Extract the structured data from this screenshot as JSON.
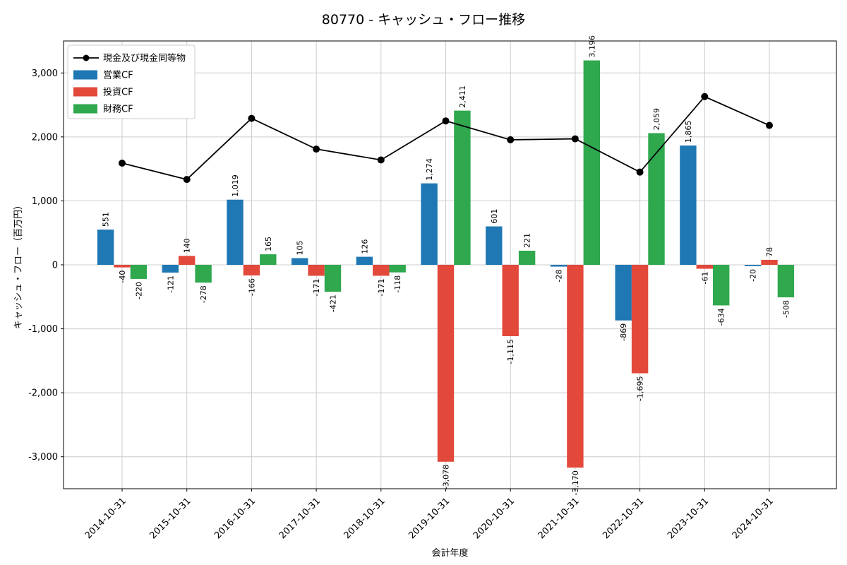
{
  "title": "80770 - キャッシュ・フロー推移",
  "chart_data": {
    "type": "bar",
    "subtype": "grouped-bars-with-line",
    "title": "80770 - キャッシュ・フロー推移",
    "xlabel": "会計年度",
    "ylabel": "キャッシュ・フロー（百万円）",
    "categories": [
      "2014-10-31",
      "2015-10-31",
      "2016-10-31",
      "2017-10-31",
      "2018-10-31",
      "2019-10-31",
      "2020-10-31",
      "2021-10-31",
      "2022-10-31",
      "2023-10-31",
      "2024-10-31"
    ],
    "series": [
      {
        "name": "現金及び現金同等物",
        "type": "line",
        "color": "#000000",
        "values": [
          1590,
          1335,
          2290,
          1810,
          1640,
          2250,
          1955,
          1970,
          1450,
          2630,
          2180
        ],
        "values_are_estimated": true
      },
      {
        "name": "営業CF",
        "type": "bar",
        "color": "#1f77b4",
        "values": [
          551,
          -121,
          1019,
          105,
          126,
          1274,
          601,
          -28,
          -869,
          1865,
          -20
        ]
      },
      {
        "name": "投資CF",
        "type": "bar",
        "color": "#e2493b",
        "values": [
          -40,
          140,
          -166,
          -171,
          -171,
          -3078,
          -1115,
          -3170,
          -1695,
          -61,
          78
        ]
      },
      {
        "name": "財務CF",
        "type": "bar",
        "color": "#2fa84e",
        "values": [
          -220,
          -278,
          165,
          -421,
          -118,
          2411,
          221,
          3196,
          2059,
          -634,
          -508
        ]
      }
    ],
    "yticks": [
      -3000,
      -2000,
      -1000,
      0,
      1000,
      2000,
      3000
    ],
    "ylim": [
      -3500,
      3500
    ],
    "grid": true,
    "legend_position": "upper-left",
    "legend_order": [
      "現金及び現金同等物",
      "営業CF",
      "投資CF",
      "財務CF"
    ],
    "bar_value_labels": true,
    "colors": {
      "grid": "#cccccc",
      "axis": "#000000",
      "legend_border": "#cccccc",
      "background": "#ffffff"
    }
  }
}
